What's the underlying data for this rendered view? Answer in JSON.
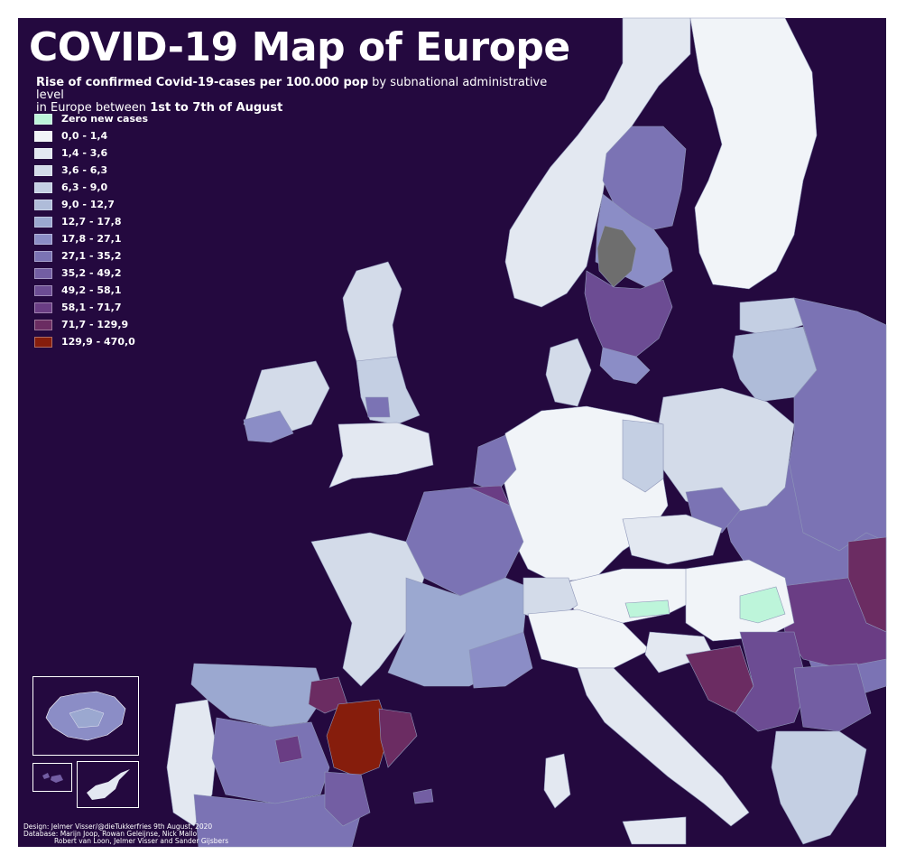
{
  "title": "COVID-19 Map of Europe",
  "subtitle": {
    "part1": "Rise of confirmed Covid-19-cases per 100.000 pop",
    "part2": " by subnational administrative level",
    "part3": "in Europe between ",
    "part4": "1st to 7th of August"
  },
  "legend": [
    {
      "label": "Zero new cases",
      "color": "#bdf5da"
    },
    {
      "label": "0,0 - 1,4",
      "color": "#f1f4f8"
    },
    {
      "label": "1,4 - 3,6",
      "color": "#e3e8f1"
    },
    {
      "label": "3,6 - 6,3",
      "color": "#d3dbe9"
    },
    {
      "label": "6,3 - 9,0",
      "color": "#c4cfe3"
    },
    {
      "label": "9,0 - 12,7",
      "color": "#afbcd9"
    },
    {
      "label": "12,7 - 17,8",
      "color": "#9ba8d0"
    },
    {
      "label": "17,8 - 27,1",
      "color": "#8b8dc6"
    },
    {
      "label": "27,1 - 35,2",
      "color": "#7b73b4"
    },
    {
      "label": "35,2 - 49,2",
      "color": "#735ea3"
    },
    {
      "label": "49,2 - 58,1",
      "color": "#6c4c93"
    },
    {
      "label": "58,1 - 71,7",
      "color": "#6a3d84"
    },
    {
      "label": "71,7 - 129,9",
      "color": "#6b2c62"
    },
    {
      "label": "129,9 - 470,0",
      "color": "#861d0c"
    }
  ],
  "credits": {
    "line1": "Design: Jelmer Visser/@dieTukkerfries 9th August, 2020",
    "line2": "Database: Marijn Joop, Rowan Geleijnse, Nick Mallo",
    "line3": "Robert van Loon, Jelmer Visser and Sander Gijsbers"
  },
  "colors": {
    "sea": "#24093f",
    "no_data": "#6e6e6e",
    "border": "#ffffff"
  }
}
